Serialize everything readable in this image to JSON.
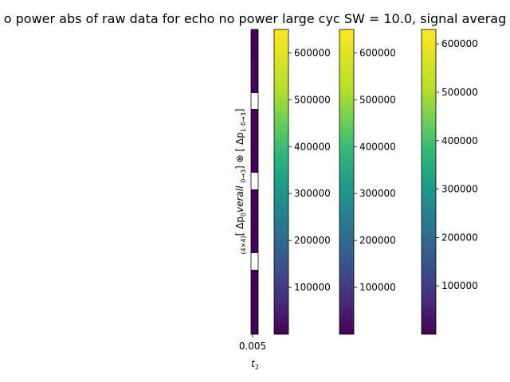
{
  "chart_data": {
    "type": "heatmap",
    "title": "o power abs of raw data for echo no power large cyc SW = 10.0, signal averag",
    "xlabel": "$t_2$",
    "ylabel": "$_{(4\\times4)}[\\ \\Delta p_0 verall\\ _{0\\rightarrow3}]\\otimes[\\ \\Delta p_1\\ _{0\\rightarrow3}]$",
    "x_tick_label": "0.005",
    "heatmap": {
      "cmap": "viridis",
      "rows": 4,
      "block_rows": 4,
      "description_rows": "dark purple blocks separated by white gaps",
      "values_normalized": [
        0.02,
        0.02,
        0.02,
        0.02
      ]
    },
    "colorbars": [
      {
        "cmap": "viridis",
        "ticks": [
          100000,
          200000,
          300000,
          400000,
          500000,
          600000
        ],
        "vmin": 0,
        "vmax": 650000
      },
      {
        "cmap": "viridis",
        "ticks": [
          100000,
          200000,
          300000,
          400000,
          500000,
          600000
        ],
        "vmin": 0,
        "vmax": 650000
      },
      {
        "cmap": "viridis",
        "ticks": [
          100000,
          200000,
          300000,
          400000,
          500000,
          600000
        ],
        "vmin": 0,
        "vmax": 630000
      }
    ]
  },
  "labels": {
    "title": "o power abs of raw data for echo no power large cyc SW = 10.0, signal averag",
    "xlabel_main": "t",
    "xlabel_sub": "2",
    "x_tick": "0.005",
    "ylabel_pre": "(4×4)",
    "ylabel_main": "[ Δp",
    "ylabel_sub0": "0",
    "ylabel_mid": "verall ",
    "ylabel_range0": "0→3",
    "ylabel_tail": "] ⊗ [ Δp",
    "ylabel_sub1": "1",
    "ylabel_range1": "0→3",
    "ylabel_end": "]"
  },
  "colors": {
    "viridis_dark": "#440154",
    "viridis_top": "#fde725"
  }
}
